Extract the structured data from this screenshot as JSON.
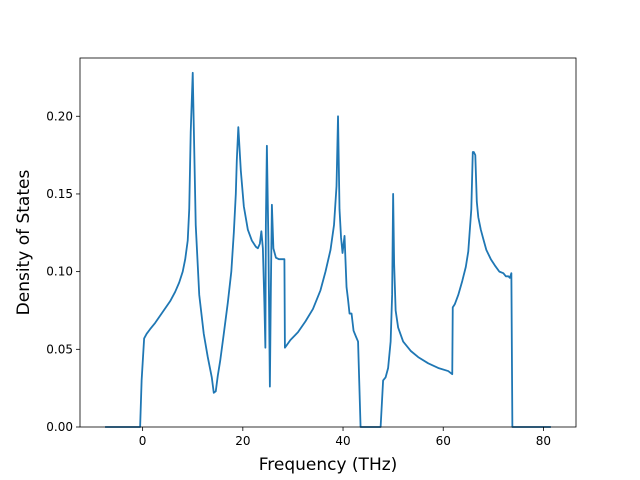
{
  "chart_data": {
    "type": "line",
    "title": "",
    "xlabel": "Frequency (THz)",
    "ylabel": "Density of States",
    "xlim": [
      -12.5,
      86.5
    ],
    "ylim": [
      0.0,
      0.2375
    ],
    "xticks": [
      0,
      20,
      40,
      60,
      80
    ],
    "xtick_labels": [
      "0",
      "20",
      "40",
      "60",
      "80"
    ],
    "yticks": [
      0.0,
      0.05,
      0.1,
      0.15,
      0.2
    ],
    "ytick_labels": [
      "0.00",
      "0.05",
      "0.10",
      "0.15",
      "0.20"
    ],
    "grid": false,
    "legend": "none",
    "color": "#1f77b4",
    "series": [
      {
        "x": [
          -7.5,
          -0.5,
          -0.2,
          0.3,
          0.8,
          1.5,
          2.5,
          4.0,
          5.5,
          6.5,
          7.3,
          8.0,
          8.5,
          9.0,
          9.3,
          9.6,
          10.0,
          10.6,
          11.3,
          12.2,
          13.0,
          13.8,
          14.2,
          14.6,
          15.0,
          15.5,
          16.2,
          17.0,
          17.7,
          18.2,
          18.6,
          18.8,
          19.1,
          19.6,
          20.2,
          21.0,
          21.8,
          22.6,
          23.0,
          23.4,
          23.7,
          24.0,
          24.3,
          24.5,
          24.6,
          24.8,
          25.1,
          25.4,
          25.6,
          25.8,
          26.1,
          26.6,
          27.2,
          27.8,
          28.3,
          28.4,
          29.5,
          31.0,
          32.5,
          34.0,
          35.5,
          36.5,
          37.5,
          38.2,
          38.7,
          39.0,
          39.3,
          39.6,
          39.9,
          40.3,
          40.7,
          41.0,
          41.3,
          41.7,
          42.1,
          42.6,
          43.0,
          43.5,
          44.0,
          44.6,
          45.0,
          45.4,
          46.0,
          47.5,
          48.0,
          48.5,
          49.0,
          49.5,
          49.8,
          50.0,
          50.2,
          50.5,
          51.0,
          52.0,
          53.5,
          55.0,
          57.0,
          59.0,
          61.0,
          61.8,
          61.9,
          62.3,
          63.0,
          63.8,
          64.5,
          65.0,
          65.6,
          65.9,
          66.1,
          66.4,
          66.7,
          67.0,
          67.5,
          68.0,
          68.6,
          69.5,
          70.3,
          71.2,
          72.0,
          72.5,
          73.0,
          73.3,
          73.6,
          73.8,
          74.3,
          75.0,
          78.0,
          81.5
        ],
        "y": [
          0.0,
          0.0,
          0.03,
          0.057,
          0.06,
          0.063,
          0.067,
          0.074,
          0.081,
          0.087,
          0.093,
          0.1,
          0.108,
          0.12,
          0.14,
          0.19,
          0.228,
          0.13,
          0.085,
          0.06,
          0.045,
          0.032,
          0.022,
          0.023,
          0.033,
          0.043,
          0.06,
          0.08,
          0.1,
          0.125,
          0.15,
          0.172,
          0.193,
          0.165,
          0.142,
          0.127,
          0.12,
          0.116,
          0.115,
          0.118,
          0.126,
          0.115,
          0.08,
          0.051,
          0.13,
          0.181,
          0.12,
          0.026,
          0.09,
          0.143,
          0.115,
          0.109,
          0.108,
          0.108,
          0.108,
          0.051,
          0.056,
          0.061,
          0.068,
          0.076,
          0.088,
          0.1,
          0.114,
          0.13,
          0.155,
          0.2,
          0.14,
          0.122,
          0.112,
          0.123,
          0.09,
          0.082,
          0.073,
          0.073,
          0.062,
          0.058,
          0.055,
          0.0,
          0.0,
          0.0,
          0.0,
          0.0,
          0.0,
          0.0,
          0.03,
          0.032,
          0.038,
          0.055,
          0.085,
          0.15,
          0.105,
          0.075,
          0.064,
          0.055,
          0.049,
          0.045,
          0.041,
          0.038,
          0.036,
          0.034,
          0.077,
          0.079,
          0.085,
          0.094,
          0.103,
          0.113,
          0.14,
          0.177,
          0.177,
          0.175,
          0.145,
          0.135,
          0.127,
          0.121,
          0.114,
          0.108,
          0.104,
          0.1,
          0.099,
          0.097,
          0.097,
          0.096,
          0.099,
          0.0,
          0.0,
          0.0,
          0.0,
          0.0
        ]
      }
    ]
  }
}
